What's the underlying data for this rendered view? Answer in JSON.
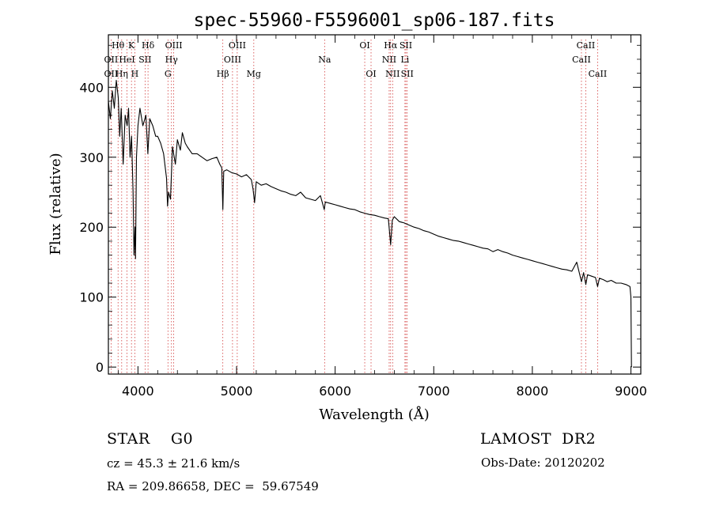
{
  "chart_data": {
    "type": "line",
    "title": "spec-55960-F5596001_sp06-187.fits",
    "xlabel": "Wavelength (Å)",
    "ylabel": "Flux (relative)",
    "xlim": [
      3700,
      9100
    ],
    "ylim": [
      -10,
      475
    ],
    "xticks": [
      4000,
      5000,
      6000,
      7000,
      8000,
      9000
    ],
    "yticks": [
      0,
      100,
      200,
      300,
      400
    ],
    "grid": false,
    "series": [
      {
        "points": [
          [
            3700,
            380
          ],
          [
            3720,
            355
          ],
          [
            3740,
            395
          ],
          [
            3760,
            370
          ],
          [
            3780,
            410
          ],
          [
            3800,
            385
          ],
          [
            3815,
            330
          ],
          [
            3830,
            370
          ],
          [
            3850,
            290
          ],
          [
            3870,
            360
          ],
          [
            3890,
            345
          ],
          [
            3905,
            370
          ],
          [
            3920,
            300
          ],
          [
            3935,
            330
          ],
          [
            3950,
            250
          ],
          [
            3960,
            160
          ],
          [
            3970,
            200
          ],
          [
            3975,
            155
          ],
          [
            3985,
            300
          ],
          [
            4000,
            345
          ],
          [
            4020,
            370
          ],
          [
            4050,
            345
          ],
          [
            4080,
            360
          ],
          [
            4100,
            305
          ],
          [
            4120,
            355
          ],
          [
            4150,
            345
          ],
          [
            4180,
            330
          ],
          [
            4200,
            330
          ],
          [
            4230,
            320
          ],
          [
            4260,
            305
          ],
          [
            4290,
            270
          ],
          [
            4300,
            230
          ],
          [
            4310,
            250
          ],
          [
            4330,
            240
          ],
          [
            4350,
            315
          ],
          [
            4380,
            290
          ],
          [
            4400,
            325
          ],
          [
            4430,
            310
          ],
          [
            4450,
            335
          ],
          [
            4480,
            320
          ],
          [
            4500,
            315
          ],
          [
            4550,
            305
          ],
          [
            4600,
            305
          ],
          [
            4650,
            300
          ],
          [
            4700,
            295
          ],
          [
            4750,
            298
          ],
          [
            4800,
            300
          ],
          [
            4830,
            290
          ],
          [
            4850,
            285
          ],
          [
            4861,
            225
          ],
          [
            4870,
            280
          ],
          [
            4900,
            282
          ],
          [
            4950,
            278
          ],
          [
            5000,
            276
          ],
          [
            5050,
            272
          ],
          [
            5100,
            275
          ],
          [
            5150,
            268
          ],
          [
            5167,
            255
          ],
          [
            5183,
            235
          ],
          [
            5200,
            265
          ],
          [
            5250,
            260
          ],
          [
            5300,
            262
          ],
          [
            5350,
            258
          ],
          [
            5400,
            255
          ],
          [
            5450,
            252
          ],
          [
            5500,
            250
          ],
          [
            5550,
            247
          ],
          [
            5600,
            245
          ],
          [
            5650,
            250
          ],
          [
            5700,
            242
          ],
          [
            5750,
            240
          ],
          [
            5800,
            238
          ],
          [
            5850,
            245
          ],
          [
            5890,
            225
          ],
          [
            5900,
            236
          ],
          [
            5950,
            234
          ],
          [
            6000,
            232
          ],
          [
            6050,
            230
          ],
          [
            6100,
            228
          ],
          [
            6150,
            226
          ],
          [
            6200,
            225
          ],
          [
            6250,
            222
          ],
          [
            6300,
            220
          ],
          [
            6350,
            218
          ],
          [
            6400,
            217
          ],
          [
            6450,
            215
          ],
          [
            6500,
            213
          ],
          [
            6540,
            212
          ],
          [
            6563,
            175
          ],
          [
            6580,
            210
          ],
          [
            6600,
            215
          ],
          [
            6650,
            208
          ],
          [
            6700,
            206
          ],
          [
            6750,
            203
          ],
          [
            6800,
            200
          ],
          [
            6850,
            198
          ],
          [
            6900,
            195
          ],
          [
            6950,
            193
          ],
          [
            7000,
            190
          ],
          [
            7050,
            187
          ],
          [
            7100,
            185
          ],
          [
            7150,
            183
          ],
          [
            7200,
            181
          ],
          [
            7250,
            180
          ],
          [
            7300,
            178
          ],
          [
            7350,
            176
          ],
          [
            7400,
            174
          ],
          [
            7450,
            172
          ],
          [
            7500,
            170
          ],
          [
            7550,
            169
          ],
          [
            7600,
            165
          ],
          [
            7650,
            168
          ],
          [
            7700,
            165
          ],
          [
            7750,
            163
          ],
          [
            7800,
            160
          ],
          [
            7850,
            158
          ],
          [
            7900,
            156
          ],
          [
            7950,
            154
          ],
          [
            8000,
            152
          ],
          [
            8050,
            150
          ],
          [
            8100,
            148
          ],
          [
            8150,
            146
          ],
          [
            8200,
            144
          ],
          [
            8250,
            142
          ],
          [
            8300,
            140
          ],
          [
            8350,
            139
          ],
          [
            8400,
            137
          ],
          [
            8450,
            150
          ],
          [
            8498,
            122
          ],
          [
            8520,
            135
          ],
          [
            8542,
            118
          ],
          [
            8560,
            132
          ],
          [
            8600,
            130
          ],
          [
            8640,
            128
          ],
          [
            8662,
            115
          ],
          [
            8680,
            127
          ],
          [
            8720,
            125
          ],
          [
            8760,
            122
          ],
          [
            8800,
            124
          ],
          [
            8850,
            120
          ],
          [
            8900,
            120
          ],
          [
            8950,
            118
          ],
          [
            8990,
            115
          ],
          [
            9000,
            100
          ],
          [
            9005,
            0
          ]
        ]
      }
    ],
    "line_labels": [
      {
        "text": "Hθ",
        "x": 3798,
        "row": 1
      },
      {
        "text": "K",
        "x": 3934,
        "row": 1
      },
      {
        "text": "Hδ",
        "x": 4102,
        "row": 1
      },
      {
        "text": "OIII",
        "x": 4363,
        "row": 1
      },
      {
        "text": "OIII",
        "x": 5007,
        "row": 1
      },
      {
        "text": "OI",
        "x": 6300,
        "row": 1
      },
      {
        "text": "Hα",
        "x": 6563,
        "row": 1
      },
      {
        "text": "SII",
        "x": 6717,
        "row": 1
      },
      {
        "text": "CaII",
        "x": 8542,
        "row": 1
      },
      {
        "text": "OII",
        "x": 3727,
        "row": 2
      },
      {
        "text": "HeI",
        "x": 3889,
        "row": 2
      },
      {
        "text": "SII",
        "x": 4072,
        "row": 2
      },
      {
        "text": "Hγ",
        "x": 4340,
        "row": 2
      },
      {
        "text": "OIII",
        "x": 4959,
        "row": 2
      },
      {
        "text": "Na",
        "x": 5893,
        "row": 2
      },
      {
        "text": "NII",
        "x": 6548,
        "row": 2
      },
      {
        "text": "Li",
        "x": 6708,
        "row": 2
      },
      {
        "text": "CaII",
        "x": 8498,
        "row": 2
      },
      {
        "text": "OII",
        "x": 3727,
        "row": 3
      },
      {
        "text": "Hη",
        "x": 3835,
        "row": 3
      },
      {
        "text": "H",
        "x": 3968,
        "row": 3
      },
      {
        "text": "G",
        "x": 4304,
        "row": 3
      },
      {
        "text": "Hβ",
        "x": 4861,
        "row": 3
      },
      {
        "text": "Mg",
        "x": 5175,
        "row": 3
      },
      {
        "text": "OI",
        "x": 6364,
        "row": 3
      },
      {
        "text": "NII",
        "x": 6583,
        "row": 3
      },
      {
        "text": "SII",
        "x": 6731,
        "row": 3
      },
      {
        "text": "CaII",
        "x": 8662,
        "row": 3
      }
    ],
    "line_markers": [
      3727,
      3798,
      3835,
      3889,
      3934,
      3968,
      4072,
      4102,
      4304,
      4340,
      4363,
      4861,
      4959,
      5007,
      5175,
      5893,
      6300,
      6364,
      6548,
      6563,
      6583,
      6708,
      6717,
      6731,
      8498,
      8542,
      8662
    ]
  },
  "info": {
    "object_class": "STAR    G0",
    "survey": "LAMOST  DR2",
    "cz": "cz = 45.3 ± 21.6 km/s",
    "obs_date": "Obs-Date: 20120202",
    "coords": "RA = 209.86658, DEC =  59.67549"
  }
}
